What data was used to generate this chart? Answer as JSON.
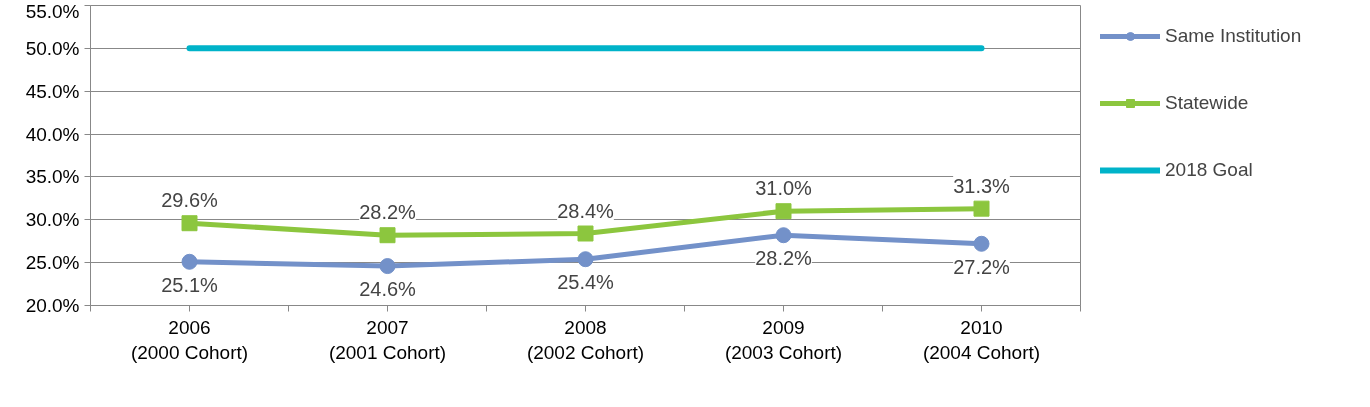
{
  "chart_data": {
    "type": "line",
    "categories": [
      "2006\n(2000 Cohort)",
      "2007\n(2001 Cohort)",
      "2008\n(2002 Cohort)",
      "2009\n(2003 Cohort)",
      "2010\n(2004 Cohort)"
    ],
    "series": [
      {
        "name": "Same Institution",
        "color": "#7391c9",
        "marker": "circle",
        "values": [
          25.1,
          24.6,
          25.4,
          28.2,
          27.2
        ],
        "value_labels": [
          "25.1%",
          "24.6%",
          "25.4%",
          "28.2%",
          "27.2%"
        ]
      },
      {
        "name": "Statewide",
        "color": "#8cc63e",
        "marker": "square",
        "values": [
          29.6,
          28.2,
          28.4,
          31.0,
          31.3
        ],
        "value_labels": [
          "29.6%",
          "28.2%",
          "28.4%",
          "31.0%",
          "31.3%"
        ]
      },
      {
        "name": "2018 Goal",
        "color": "#00b3c9",
        "marker": "none",
        "values": [
          50,
          50,
          50,
          50,
          50
        ]
      }
    ],
    "ylim": [
      20,
      55
    ],
    "yticks": [
      {
        "value": 20,
        "label": "20.0%"
      },
      {
        "value": 25,
        "label": "25.0%"
      },
      {
        "value": 30,
        "label": "30.0%"
      },
      {
        "value": 35,
        "label": "35.0%"
      },
      {
        "value": 40,
        "label": "40.0%"
      },
      {
        "value": 45,
        "label": "45.0%"
      },
      {
        "value": 50,
        "label": "50.0%"
      },
      {
        "value": 55,
        "label": "55.0%"
      }
    ],
    "grid": "y",
    "legend": "right",
    "line_style": "solid"
  }
}
